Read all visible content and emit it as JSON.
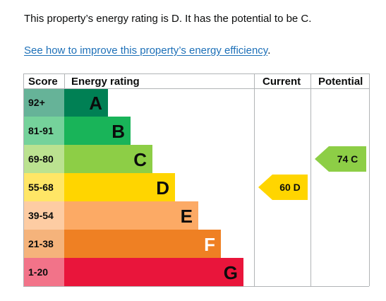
{
  "summary_text": "This property’s energy rating is D. It has the potential to be C.",
  "improve_link": {
    "label": "See how to improve this property’s energy efficiency",
    "suffix": "."
  },
  "chart_data": {
    "type": "bar",
    "headers": {
      "score": "Score",
      "rating": "Energy rating",
      "current": "Current",
      "potential": "Potential"
    },
    "bands": [
      {
        "score": "92+",
        "letter": "A",
        "color": "#008054",
        "score_bg": "#66b398",
        "letter_color": "#0b0c0c"
      },
      {
        "score": "81-91",
        "letter": "B",
        "color": "#19b459",
        "score_bg": "#75d29b",
        "letter_color": "#0b0c0c"
      },
      {
        "score": "69-80",
        "letter": "C",
        "color": "#8dce46",
        "score_bg": "#bbe290",
        "letter_color": "#0b0c0c"
      },
      {
        "score": "55-68",
        "letter": "D",
        "color": "#ffd500",
        "score_bg": "#ffe666",
        "letter_color": "#0b0c0c"
      },
      {
        "score": "39-54",
        "letter": "E",
        "color": "#fcaa65",
        "score_bg": "#fdcca3",
        "letter_color": "#0b0c0c"
      },
      {
        "score": "21-38",
        "letter": "F",
        "color": "#ef8023",
        "score_bg": "#f5b37b",
        "letter_color": "#ffffff"
      },
      {
        "score": "1-20",
        "letter": "G",
        "color": "#e9153b",
        "score_bg": "#f27389",
        "letter_color": "#0b0c0c"
      }
    ],
    "current": {
      "value": 60,
      "band": "D",
      "label": "60 D",
      "color": "#ffd500"
    },
    "potential": {
      "value": 74,
      "band": "C",
      "label": "74 C",
      "color": "#8dce46"
    }
  }
}
